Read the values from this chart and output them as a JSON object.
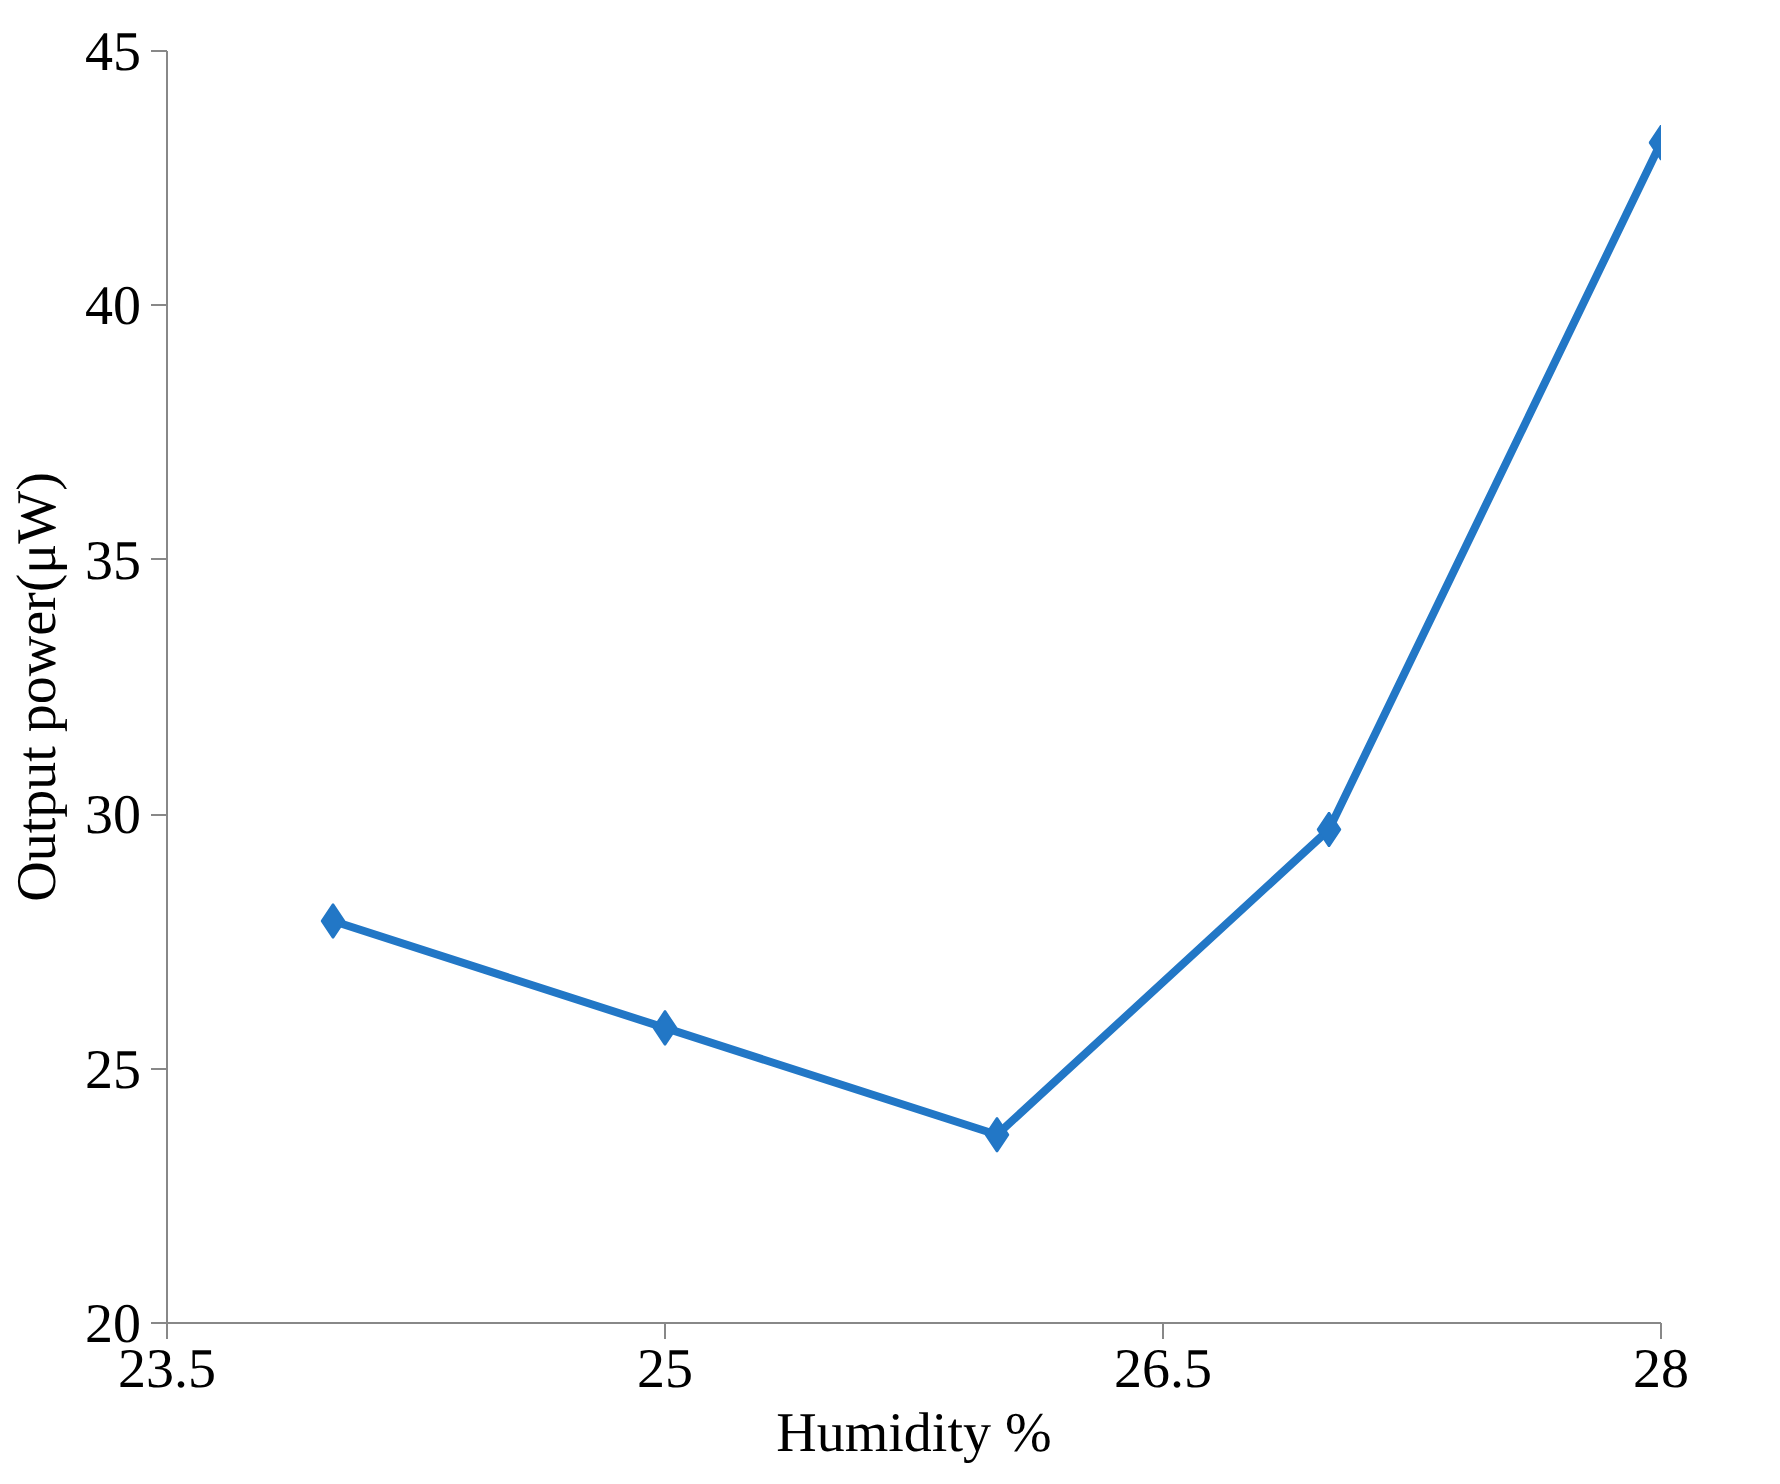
{
  "chart_data": {
    "type": "line",
    "xlabel": "Humidity %",
    "ylabel": "Output power(μW)",
    "x": [
      24,
      25,
      26,
      27,
      28
    ],
    "series": [
      {
        "color": "#2277c6",
        "values": [
          27.9,
          25.8,
          23.7,
          29.7,
          43.2
        ]
      }
    ],
    "xlim": [
      23.5,
      28
    ],
    "xticks": [
      23.5,
      25,
      26.5,
      28
    ],
    "ylim": [
      20,
      45
    ],
    "yticks": [
      20,
      25,
      30,
      35,
      40,
      45
    ],
    "grid": false,
    "marker": "diamond",
    "line_style": "solid"
  }
}
